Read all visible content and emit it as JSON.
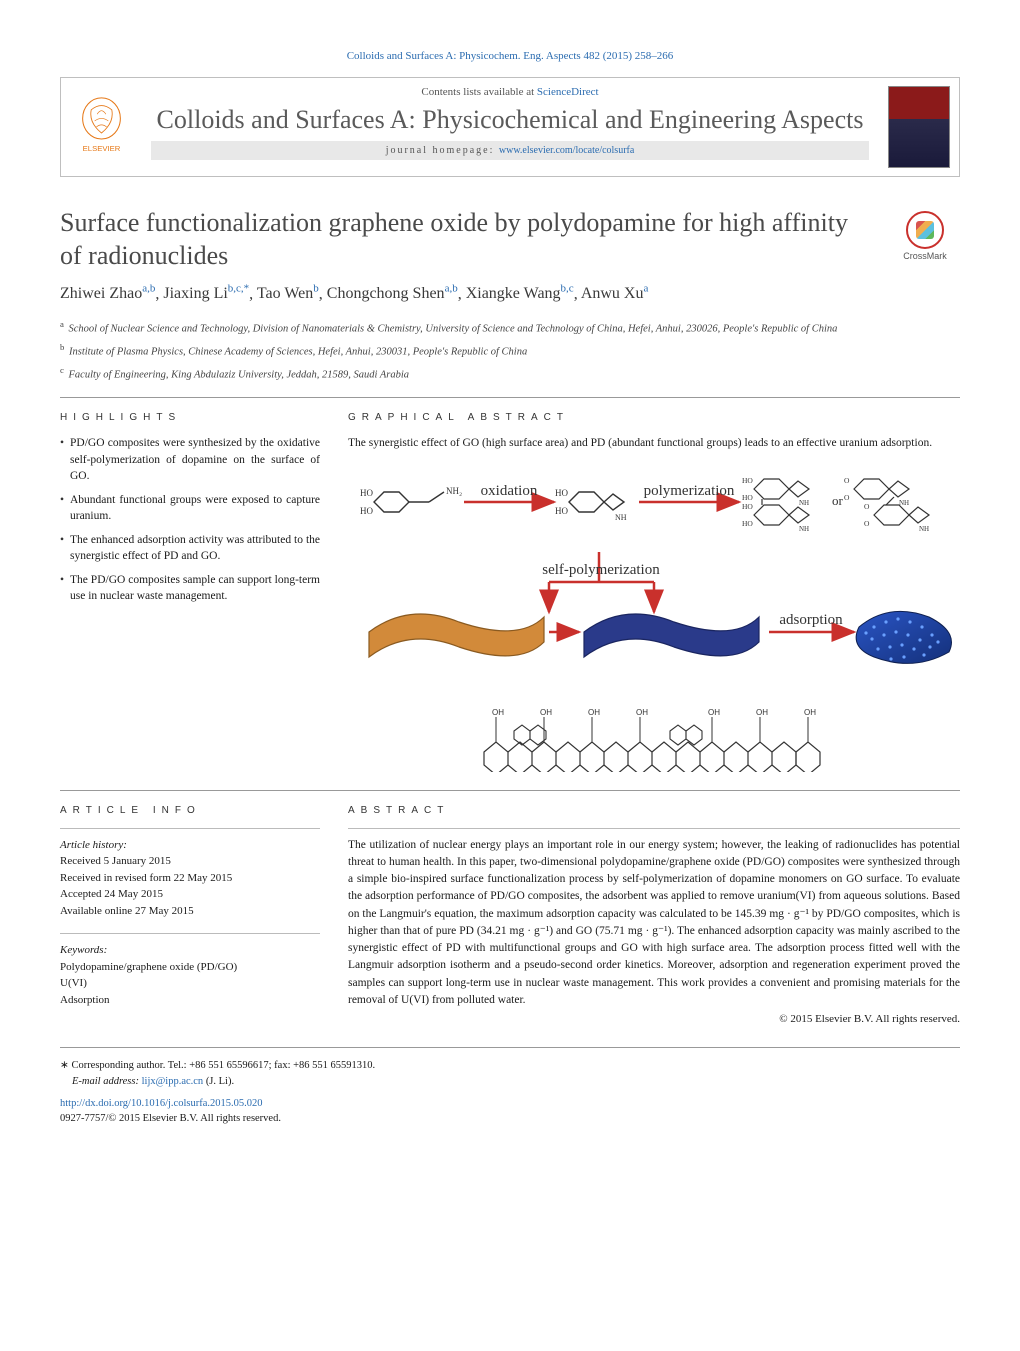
{
  "citation": "Colloids and Surfaces A: Physicochem. Eng. Aspects 482 (2015) 258–266",
  "header": {
    "contents_prefix": "Contents lists available at ",
    "contents_link": "ScienceDirect",
    "journal_name": "Colloids and Surfaces A: Physicochemical and Engineering Aspects",
    "homepage_prefix": "journal homepage: ",
    "homepage_url": "www.elsevier.com/locate/colsurfa",
    "publisher": "ELSEVIER"
  },
  "crossmark": "CrossMark",
  "title": "Surface functionalization graphene oxide by polydopamine for high affinity of radionuclides",
  "authors_html": "Zhiwei Zhao|a,b|, Jiaxing Li|b,c,*|, Tao Wen|b|, Chongchong Shen|a,b|, Xiangke Wang|b,c|, Anwu Xu|a|",
  "affiliations": [
    {
      "sup": "a",
      "text": "School of Nuclear Science and Technology, Division of Nanomaterials & Chemistry, University of Science and Technology of China, Hefei, Anhui, 230026, People's Republic of China"
    },
    {
      "sup": "b",
      "text": "Institute of Plasma Physics, Chinese Academy of Sciences, Hefei, Anhui, 230031, People's Republic of China"
    },
    {
      "sup": "c",
      "text": "Faculty of Engineering, King Abdulaziz University, Jeddah, 21589, Saudi Arabia"
    }
  ],
  "sections": {
    "highlights": "HIGHLIGHTS",
    "graphical_abstract": "GRAPHICAL ABSTRACT",
    "article_info": "ARTICLE INFO",
    "abstract": "ABSTRACT"
  },
  "highlights": [
    "PD/GO composites were synthesized by the oxidative self-polymerization of dopamine on the surface of GO.",
    "Abundant functional groups were exposed to capture uranium.",
    "The enhanced adsorption activity was attributed to the synergistic effect of PD and GO.",
    "The PD/GO composites sample can support long-term use in nuclear waste management."
  ],
  "ga_caption": "The synergistic effect of GO (high surface area) and PD (abundant functional groups) leads to an effective uranium adsorption.",
  "ga_labels": {
    "oxidation": "oxidation",
    "polymerization": "polymerization",
    "self_polymerization": "self-polymerization",
    "adsorption": "adsorption",
    "or": "or"
  },
  "ga_style": {
    "arrow_color": "#c9302c",
    "arrow_stroke_width": 2.5,
    "sheet1_fill": "#d28a3a",
    "sheet1_stroke": "#8a5a20",
    "sheet2_fill": "#2a3a8a",
    "sheet2_stroke": "#1a2560",
    "sheet3_grad_from": "#2a55c5",
    "sheet3_grad_to": "#14307a",
    "dot_fill": "#6aa0ff",
    "chem_stroke": "#333333",
    "chem_stroke_width": 1.4,
    "label_font_size": 15,
    "label_font_family": "Georgia, serif",
    "background": "#ffffff"
  },
  "article_info": {
    "history_label": "Article history:",
    "received": "Received 5 January 2015",
    "revised": "Received in revised form 22 May 2015",
    "accepted": "Accepted 24 May 2015",
    "online": "Available online 27 May 2015",
    "keywords_label": "Keywords:",
    "keywords": [
      "Polydopamine/graphene oxide (PD/GO)",
      "U(VI)",
      "Adsorption"
    ]
  },
  "abstract": "The utilization of nuclear energy plays an important role in our energy system; however, the leaking of radionuclides has potential threat to human health. In this paper, two-dimensional polydopamine/graphene oxide (PD/GO) composites were synthesized through a simple bio-inspired surface functionalization process by self-polymerization of dopamine monomers on GO surface. To evaluate the adsorption performance of PD/GO composites, the adsorbent was applied to remove uranium(VI) from aqueous solutions. Based on the Langmuir's equation, the maximum adsorption capacity was calculated to be 145.39 mg · g⁻¹ by PD/GO composites, which is higher than that of pure PD (34.21 mg · g⁻¹) and GO (75.71 mg · g⁻¹). The enhanced adsorption capacity was mainly ascribed to the synergistic effect of PD with multifunctional groups and GO with high surface area. The adsorption process fitted well with the Langmuir adsorption isotherm and a pseudo-second order kinetics. Moreover, adsorption and regeneration experiment proved the samples can support long-term use in nuclear waste management. This work provides a convenient and promising materials for the removal of U(VI) from polluted water.",
  "copyright": "© 2015 Elsevier B.V. All rights reserved.",
  "corresponding": {
    "line1": "Corresponding author. Tel.: +86 551 65596617; fax: +86 551 65591310.",
    "email_label": "E-mail address: ",
    "email": "lijx@ipp.ac.cn",
    "email_suffix": " (J. Li)."
  },
  "footer": {
    "doi_url": "http://dx.doi.org/10.1016/j.colsurfa.2015.05.020",
    "issn_line": "0927-7757/© 2015 Elsevier B.V. All rights reserved."
  }
}
